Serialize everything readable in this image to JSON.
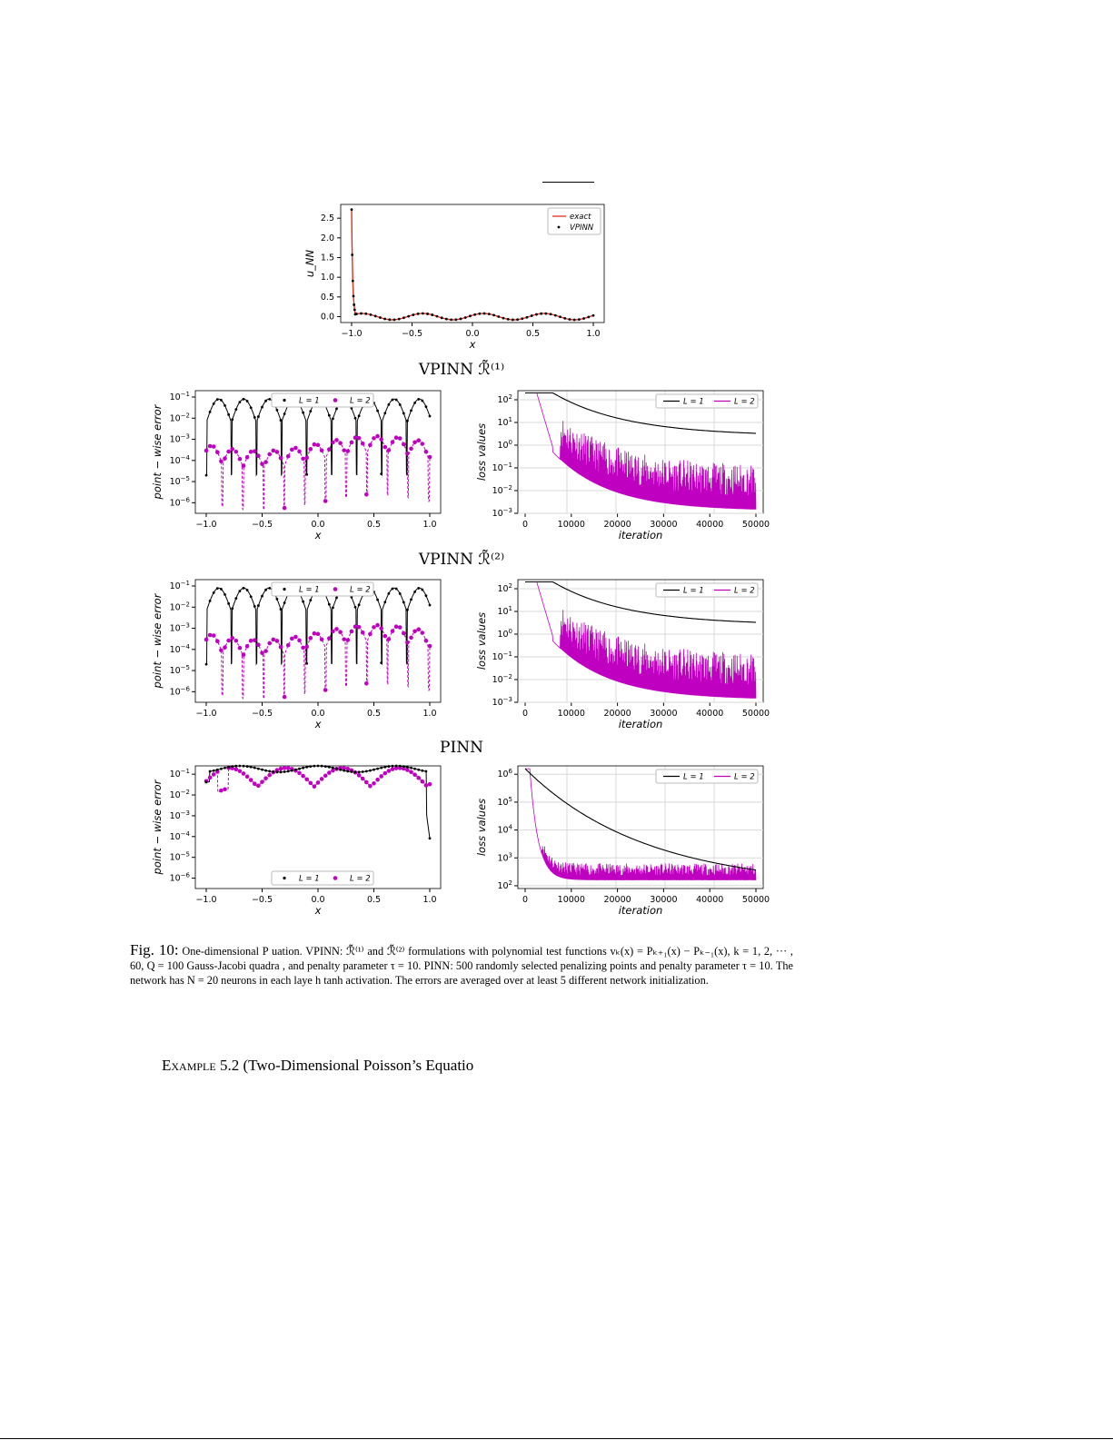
{
  "section_titles": {
    "vpinn1": "VPINN ℛ̃⁽¹⁾",
    "vpinn2": "VPINN ℛ̃⁽²⁾",
    "pinn": "PINN"
  },
  "caption": {
    "label": "Fig. 10:",
    "text": "One-dimensional P             uation.  VPINN: ℛ̃⁽¹⁾ and ℛ̃⁽²⁾ formulations with polynomial test functions vₖ(x) = Pₖ₊₁(x) − Pₖ₋₁(x), k = 1, 2, ··· , 60, Q = 100 Gauss-Jacobi quadra              , and penalty parameter τ = 10.  PINN: 500 randomly selected penalizing points and penalty parameter τ = 10.  The network has N = 20 neurons in each laye       h tanh activation. The errors are averaged over at least 5 different network initialization."
  },
  "example": {
    "label": "Example 5.2",
    "text": "(Two-Dimensional Poisson’s Equatio"
  },
  "colors": {
    "black": "#000000",
    "magenta": "#c000c0",
    "red": "#e03020",
    "grid": "#d8d8d8"
  },
  "chart_data": [
    {
      "id": "solution",
      "type": "line",
      "xlabel": "x",
      "ylabel": "u_NN",
      "xlim": [
        -1.0,
        1.0
      ],
      "ylim": [
        -0.15,
        2.85
      ],
      "xticks": [
        "−1.0",
        "−0.5",
        "0.0",
        "0.5",
        "1.0"
      ],
      "yticks": [
        "0.0",
        "0.5",
        "1.0",
        "1.5",
        "2.0",
        "2.5"
      ],
      "legend": {
        "placement": "top-right",
        "entries": [
          "exact",
          "VPINN"
        ]
      },
      "grid": false
    },
    {
      "id": "vpinn1-error",
      "type": "line",
      "xlabel": "x",
      "ylabel": "point − wise error",
      "xlim": [
        -1.0,
        1.0
      ],
      "ylog_range": [
        -6.5,
        -0.7
      ],
      "xticks": [
        "−1.0",
        "−0.5",
        "0.0",
        "0.5",
        "1.0"
      ],
      "yticks_exp": [
        "−1",
        "−2",
        "−3",
        "−4",
        "−5",
        "−6"
      ],
      "legend": {
        "placement": "top-center",
        "entries": [
          "L = 1",
          "L = 2"
        ]
      },
      "grid": false
    },
    {
      "id": "vpinn1-loss",
      "type": "line",
      "xlabel": "iteration",
      "ylabel": "loss values",
      "xlim": [
        0,
        50000
      ],
      "ylog_range": [
        -3,
        2.4
      ],
      "xticks": [
        "0",
        "10000",
        "20000",
        "30000",
        "40000",
        "50000"
      ],
      "yticks_exp": [
        "2",
        "1",
        "0",
        "−1",
        "−2",
        "−3"
      ],
      "legend": {
        "placement": "top-right",
        "entries": [
          "L = 1",
          "L = 2"
        ]
      },
      "grid": true
    },
    {
      "id": "vpinn2-error",
      "type": "line",
      "xlabel": "x",
      "ylabel": "point − wise error",
      "xlim": [
        -1.0,
        1.0
      ],
      "ylog_range": [
        -6.5,
        -0.7
      ],
      "xticks": [
        "−1.0",
        "−0.5",
        "0.0",
        "0.5",
        "1.0"
      ],
      "yticks_exp": [
        "−1",
        "−2",
        "−3",
        "−4",
        "−5",
        "−6"
      ],
      "legend": {
        "placement": "top-center",
        "entries": [
          "L = 1",
          "L = 2"
        ]
      },
      "grid": false
    },
    {
      "id": "vpinn2-loss",
      "type": "line",
      "xlabel": "iteration",
      "ylabel": "loss values",
      "xlim": [
        0,
        50000
      ],
      "ylog_range": [
        -3,
        2.4
      ],
      "xticks": [
        "0",
        "10000",
        "20000",
        "30000",
        "40000",
        "50000"
      ],
      "yticks_exp": [
        "2",
        "1",
        "0",
        "−1",
        "−2",
        "−3"
      ],
      "legend": {
        "placement": "top-right",
        "entries": [
          "L = 1",
          "L = 2"
        ]
      },
      "grid": true
    },
    {
      "id": "pinn-error",
      "type": "line",
      "xlabel": "x",
      "ylabel": "point − wise error",
      "xlim": [
        -1.0,
        1.0
      ],
      "ylog_range": [
        -6.5,
        -0.6
      ],
      "xticks": [
        "−1.0",
        "−0.5",
        "0.0",
        "0.5",
        "1.0"
      ],
      "yticks_exp": [
        "−1",
        "−2",
        "−3",
        "−4",
        "−5",
        "−6"
      ],
      "legend": {
        "placement": "bottom-center",
        "entries": [
          "L = 1",
          "L = 2"
        ]
      },
      "grid": false
    },
    {
      "id": "pinn-loss",
      "type": "line",
      "xlabel": "iteration",
      "ylabel": "loss values",
      "xlim": [
        0,
        50000
      ],
      "ylog_range": [
        1.9,
        6.3
      ],
      "xticks": [
        "0",
        "10000",
        "20000",
        "30000",
        "40000",
        "50000"
      ],
      "yticks_exp": [
        "6",
        "5",
        "4",
        "3",
        "2"
      ],
      "legend": {
        "placement": "top-right",
        "entries": [
          "L = 1",
          "L = 2"
        ]
      },
      "grid": true
    }
  ]
}
